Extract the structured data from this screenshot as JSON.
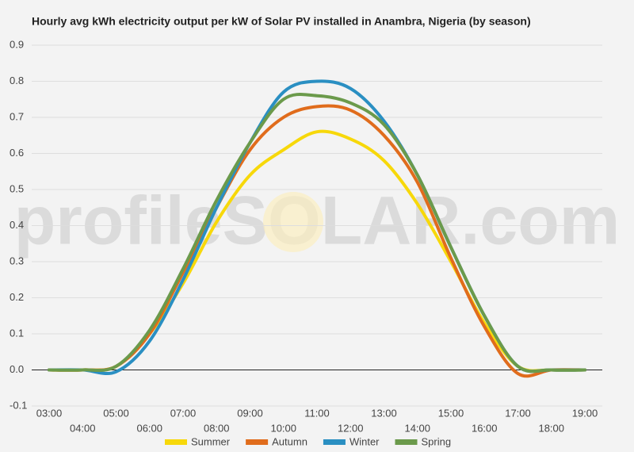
{
  "chart_data": {
    "type": "line",
    "title": "Hourly avg kWh electricity output per kW of Solar PV installed in Anambra, Nigeria (by season)",
    "watermark": "profileSOLAR.com",
    "categories": [
      "03:00",
      "04:00",
      "05:00",
      "06:00",
      "07:00",
      "08:00",
      "09:00",
      "10:00",
      "11:00",
      "12:00",
      "13:00",
      "14:00",
      "15:00",
      "16:00",
      "17:00",
      "18:00",
      "19:00"
    ],
    "series": [
      {
        "name": "Summer",
        "color": "#f7d80a",
        "values": [
          0,
          0,
          0.01,
          0.1,
          0.24,
          0.41,
          0.54,
          0.61,
          0.66,
          0.64,
          0.58,
          0.46,
          0.3,
          0.13,
          0.01,
          0,
          0
        ]
      },
      {
        "name": "Autumn",
        "color": "#e06c1c",
        "values": [
          0,
          0,
          0.01,
          0.1,
          0.27,
          0.45,
          0.61,
          0.7,
          0.73,
          0.72,
          0.65,
          0.52,
          0.31,
          0.12,
          -0.01,
          0,
          0
        ]
      },
      {
        "name": "Winter",
        "color": "#2a8fc2",
        "values": [
          0,
          0,
          -0.005,
          0.08,
          0.25,
          0.45,
          0.63,
          0.77,
          0.8,
          0.78,
          0.69,
          0.54,
          0.34,
          0.15,
          0.01,
          0,
          0
        ]
      },
      {
        "name": "Spring",
        "color": "#6b9a4b",
        "values": [
          0,
          0,
          0.01,
          0.11,
          0.28,
          0.47,
          0.63,
          0.75,
          0.76,
          0.74,
          0.68,
          0.54,
          0.34,
          0.15,
          0.01,
          0,
          0
        ]
      }
    ],
    "ylim": [
      -0.1,
      0.9
    ],
    "yticks": [
      -0.1,
      {
        "value": 0,
        "label": "0.0"
      },
      0.1,
      0.2,
      0.3,
      0.4,
      0.5,
      0.6,
      0.7,
      0.8,
      0.9
    ],
    "grid": true,
    "legend": "bottom"
  }
}
